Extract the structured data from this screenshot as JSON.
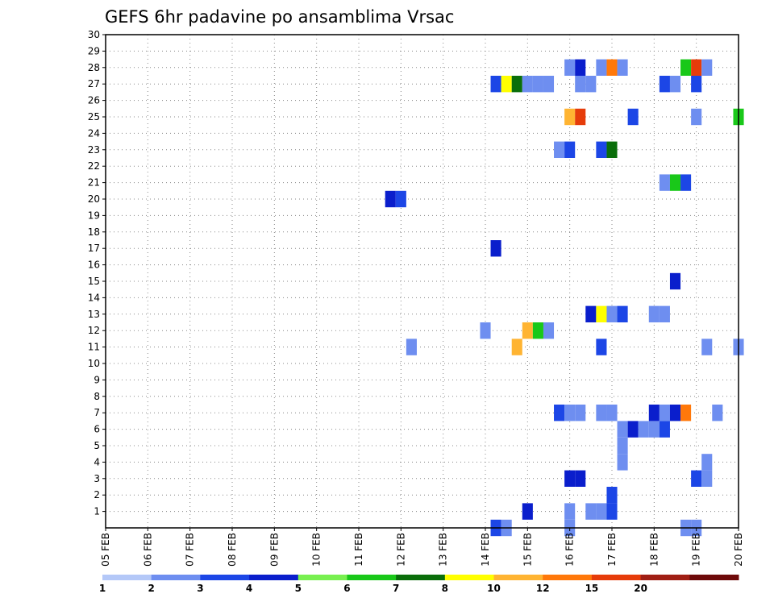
{
  "chart_data": {
    "type": "heatmap",
    "title": "GEFS 6hr padavine po ansamblima Vrsac",
    "x_labels": [
      "05 FEB",
      "06 FEB",
      "07 FEB",
      "08 FEB",
      "09 FEB",
      "10 FEB",
      "11 FEB",
      "12 FEB",
      "13 FEB",
      "14 FEB",
      "15 FEB",
      "16 FEB",
      "17 FEB",
      "18 FEB",
      "19 FEB",
      "20 FEB"
    ],
    "y_labels": [
      "1",
      "2",
      "3",
      "4",
      "5",
      "6",
      "7",
      "8",
      "9",
      "10",
      "11",
      "12",
      "13",
      "14",
      "15",
      "16",
      "17",
      "18",
      "19",
      "20",
      "21",
      "22",
      "23",
      "24",
      "25",
      "26",
      "27",
      "28",
      "29",
      "30"
    ],
    "ylim": [
      0,
      30
    ],
    "xlim": [
      0,
      60
    ],
    "grid": true,
    "legend": {
      "labels": [
        "1",
        "2",
        "3",
        "4",
        "5",
        "6",
        "7",
        "8",
        "10",
        "12",
        "15",
        "20"
      ],
      "colors": [
        "#b4c8f8",
        "#6e8ef0",
        "#1c46e6",
        "#0a1ecc",
        "#78f050",
        "#19c819",
        "#0a6e0a",
        "#ffff00",
        "#ffb432",
        "#ff780a",
        "#e63c0a",
        "#a01e14",
        "#6e0a0a"
      ]
    },
    "cells": [
      [
        37,
        0,
        2
      ],
      [
        38,
        0,
        1
      ],
      [
        44,
        0,
        1
      ],
      [
        55,
        0,
        1
      ],
      [
        56,
        0,
        1
      ],
      [
        40,
        1,
        3
      ],
      [
        44,
        1,
        1
      ],
      [
        46,
        1,
        1
      ],
      [
        47,
        1,
        1
      ],
      [
        48,
        1,
        2
      ],
      [
        48,
        2,
        2
      ],
      [
        44,
        3,
        3
      ],
      [
        45,
        3,
        3
      ],
      [
        56,
        3,
        2
      ],
      [
        57,
        3,
        1
      ],
      [
        49,
        4,
        1
      ],
      [
        57,
        4,
        1
      ],
      [
        49,
        5,
        1
      ],
      [
        49,
        6,
        1
      ],
      [
        50,
        6,
        3
      ],
      [
        51,
        6,
        1
      ],
      [
        52,
        6,
        1
      ],
      [
        53,
        6,
        2
      ],
      [
        43,
        7,
        2
      ],
      [
        44,
        7,
        1
      ],
      [
        45,
        7,
        1
      ],
      [
        47,
        7,
        1
      ],
      [
        48,
        7,
        1
      ],
      [
        52,
        7,
        3
      ],
      [
        53,
        7,
        1
      ],
      [
        54,
        7,
        3
      ],
      [
        55,
        7,
        9
      ],
      [
        58,
        7,
        1
      ],
      [
        29,
        11,
        1
      ],
      [
        39,
        11,
        8
      ],
      [
        47,
        11,
        2
      ],
      [
        57,
        11,
        1
      ],
      [
        60,
        11,
        1
      ],
      [
        36,
        12,
        1
      ],
      [
        40,
        12,
        8
      ],
      [
        41,
        12,
        5
      ],
      [
        42,
        12,
        1
      ],
      [
        46,
        13,
        3
      ],
      [
        47,
        13,
        7
      ],
      [
        48,
        13,
        1
      ],
      [
        49,
        13,
        2
      ],
      [
        52,
        13,
        1
      ],
      [
        53,
        13,
        1
      ],
      [
        54,
        15,
        3
      ],
      [
        37,
        17,
        3
      ],
      [
        27,
        20,
        3
      ],
      [
        28,
        20,
        2
      ],
      [
        53,
        21,
        1
      ],
      [
        54,
        21,
        5
      ],
      [
        55,
        21,
        2
      ],
      [
        43,
        23,
        1
      ],
      [
        44,
        23,
        2
      ],
      [
        47,
        23,
        2
      ],
      [
        48,
        23,
        6
      ],
      [
        44,
        25,
        8
      ],
      [
        45,
        25,
        10
      ],
      [
        50,
        25,
        2
      ],
      [
        56,
        25,
        1
      ],
      [
        60,
        25,
        5
      ],
      [
        37,
        27,
        2
      ],
      [
        38,
        27,
        7
      ],
      [
        39,
        27,
        6
      ],
      [
        40,
        27,
        1
      ],
      [
        41,
        27,
        1
      ],
      [
        42,
        27,
        1
      ],
      [
        45,
        27,
        1
      ],
      [
        46,
        27,
        1
      ],
      [
        53,
        27,
        2
      ],
      [
        54,
        27,
        1
      ],
      [
        56,
        27,
        2
      ],
      [
        44,
        28,
        1
      ],
      [
        45,
        28,
        3
      ],
      [
        47,
        28,
        1
      ],
      [
        48,
        28,
        9
      ],
      [
        49,
        28,
        1
      ],
      [
        55,
        28,
        5
      ],
      [
        56,
        28,
        10
      ],
      [
        57,
        28,
        1
      ]
    ]
  }
}
